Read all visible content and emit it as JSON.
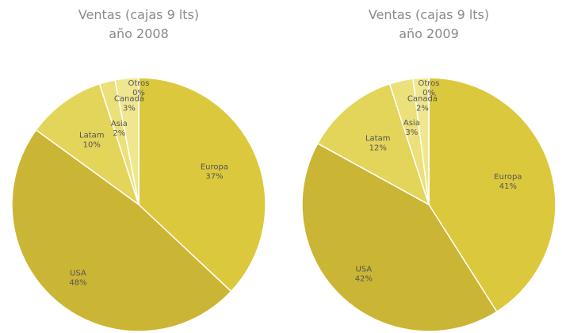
{
  "chart_data": [
    {
      "type": "pie",
      "title": "Ventas (cajas 9 lts)",
      "subtitle": "año 2008",
      "categories": [
        "Europa",
        "USA",
        "Latam",
        "Asia",
        "Canadá",
        "Otros"
      ],
      "values": [
        37,
        48,
        10,
        2,
        3,
        0
      ],
      "value_labels": [
        "37%",
        "48%",
        "10%",
        "2%",
        "3%",
        "0%"
      ],
      "colors": [
        "#dcc83c",
        "#cbb534",
        "#e3d45a",
        "#ebe07a",
        "#efe68f",
        "#f3eda8"
      ]
    },
    {
      "type": "pie",
      "title": "Ventas (cajas 9 lts)",
      "subtitle": "año 2009",
      "categories": [
        "Europa",
        "USA",
        "Latam",
        "Asia",
        "Canadá",
        "Otros"
      ],
      "values": [
        41,
        42,
        12,
        3,
        2,
        0
      ],
      "value_labels": [
        "41%",
        "42%",
        "12%",
        "3%",
        "2%",
        "0%"
      ],
      "colors": [
        "#dcc83c",
        "#cbb534",
        "#e3d45a",
        "#ebe07a",
        "#efe68f",
        "#f3eda8"
      ]
    }
  ]
}
